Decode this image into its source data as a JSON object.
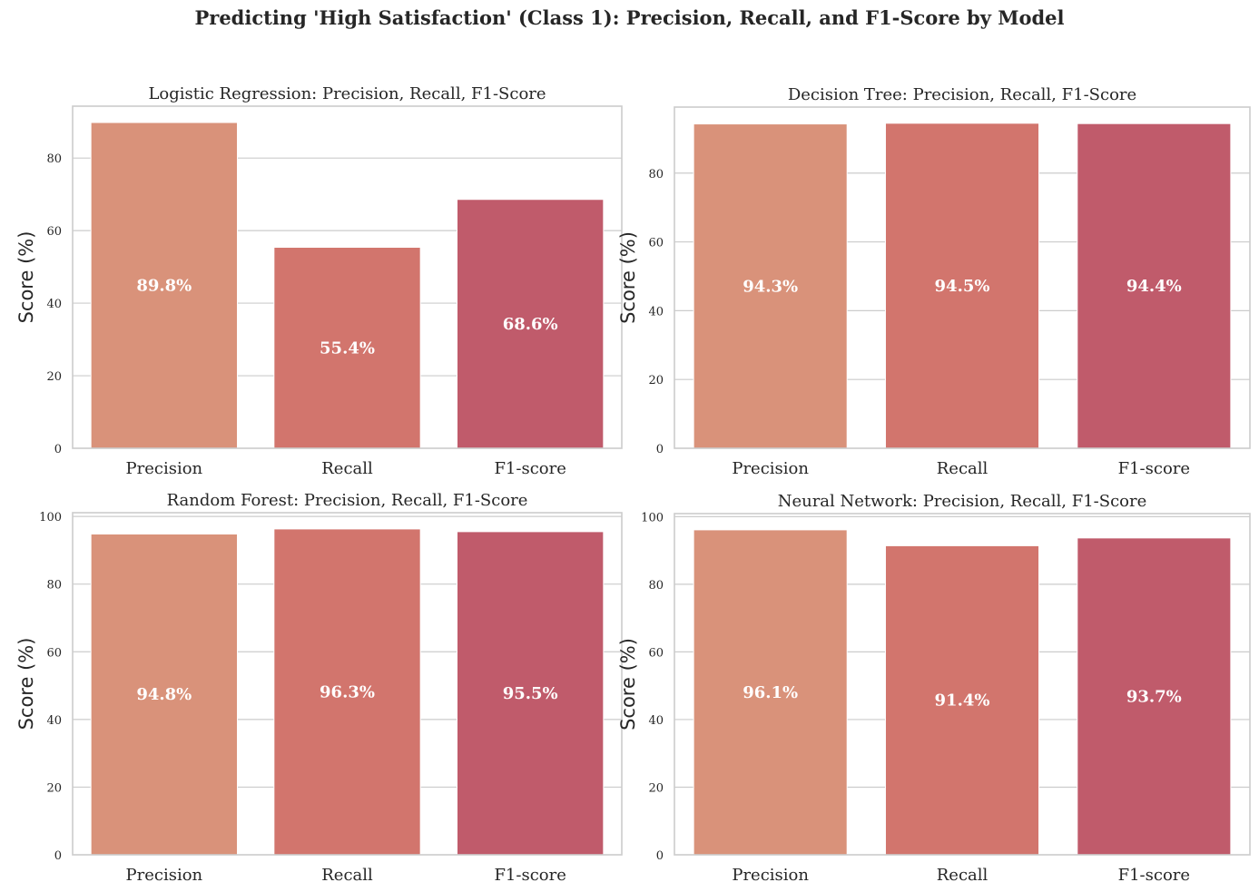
{
  "suptitle": "Predicting 'High Satisfaction' (Class 1): Precision, Recall, and F1-Score by Model",
  "colors": [
    "#d9927a",
    "#d2756d",
    "#c05b6b"
  ],
  "chart_data": [
    {
      "type": "bar",
      "title": "Logistic Regression: Precision, Recall, F1-Score",
      "xlabel": "",
      "ylabel": "Score (%)",
      "categories": [
        "Precision",
        "Recall",
        "F1-score"
      ],
      "values": [
        89.8,
        55.4,
        68.6
      ],
      "labels": [
        "89.8%",
        "55.4%",
        "68.6%"
      ],
      "ylim": [
        0,
        94.3
      ],
      "yticks": [
        0,
        20,
        40,
        60,
        80
      ],
      "grid": true
    },
    {
      "type": "bar",
      "title": "Decision Tree: Precision, Recall, F1-Score",
      "xlabel": "",
      "ylabel": "Score (%)",
      "categories": [
        "Precision",
        "Recall",
        "F1-score"
      ],
      "values": [
        94.3,
        94.5,
        94.4
      ],
      "labels": [
        "94.3%",
        "94.5%",
        "94.4%"
      ],
      "ylim": [
        0,
        99.2
      ],
      "yticks": [
        0,
        20,
        40,
        60,
        80
      ],
      "grid": true
    },
    {
      "type": "bar",
      "title": "Random Forest: Precision, Recall, F1-Score",
      "xlabel": "",
      "ylabel": "Score (%)",
      "categories": [
        "Precision",
        "Recall",
        "F1-score"
      ],
      "values": [
        94.8,
        96.3,
        95.5
      ],
      "labels": [
        "94.8%",
        "96.3%",
        "95.5%"
      ],
      "ylim": [
        0,
        101.1
      ],
      "yticks": [
        0,
        20,
        40,
        60,
        80,
        100
      ],
      "grid": true
    },
    {
      "type": "bar",
      "title": "Neural Network: Precision, Recall, F1-Score",
      "xlabel": "",
      "ylabel": "Score (%)",
      "categories": [
        "Precision",
        "Recall",
        "F1-score"
      ],
      "values": [
        96.1,
        91.4,
        93.7
      ],
      "labels": [
        "96.1%",
        "91.4%",
        "93.7%"
      ],
      "ylim": [
        0,
        100.9
      ],
      "yticks": [
        0,
        20,
        40,
        60,
        80,
        100
      ],
      "grid": true
    }
  ]
}
